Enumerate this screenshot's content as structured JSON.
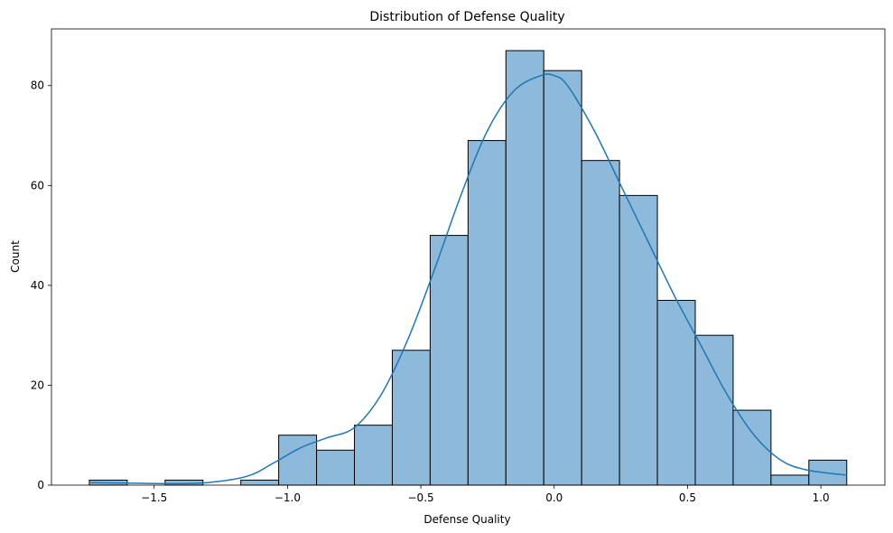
{
  "chart_data": {
    "type": "bar",
    "title": "Distribution of Defense Quality",
    "xlabel": "Defense Quality",
    "ylabel": "Count",
    "xlim": [
      -1.885,
      1.24
    ],
    "ylim": [
      0,
      91.35
    ],
    "x_ticks": [
      -1.5,
      -1.0,
      -0.5,
      0.0,
      0.5,
      1.0
    ],
    "x_tick_labels": [
      "−1.5",
      "−1.0",
      "−0.5",
      "0.0",
      "0.5",
      "1.0"
    ],
    "y_ticks": [
      0,
      20,
      40,
      60,
      80
    ],
    "y_tick_labels": [
      "0",
      "20",
      "40",
      "60",
      "80"
    ],
    "bin_edges": [
      -1.743,
      -1.601,
      -1.459,
      -1.317,
      -1.175,
      -1.033,
      -0.891,
      -0.749,
      -0.607,
      -0.465,
      -0.323,
      -0.181,
      -0.039,
      0.103,
      0.245,
      0.387,
      0.529,
      0.671,
      0.813,
      0.955,
      1.097
    ],
    "values": [
      1,
      0,
      1,
      0,
      1,
      10,
      7,
      12,
      27,
      50,
      69,
      87,
      83,
      65,
      58,
      37,
      30,
      15,
      2,
      5
    ],
    "kde": {
      "x": [
        -1.743,
        -1.6,
        -1.45,
        -1.3,
        -1.15,
        -1.05,
        -0.95,
        -0.85,
        -0.75,
        -0.65,
        -0.55,
        -0.45,
        -0.35,
        -0.25,
        -0.15,
        -0.05,
        0.0,
        0.05,
        0.15,
        0.25,
        0.35,
        0.45,
        0.55,
        0.65,
        0.75,
        0.85,
        0.95,
        1.097
      ],
      "y": [
        0.5,
        0.4,
        0.3,
        0.5,
        1.8,
        4.5,
        7.5,
        9.5,
        11.5,
        18,
        29,
        43,
        58,
        71,
        79,
        82,
        82,
        80,
        71,
        60,
        49,
        38,
        28,
        18,
        10,
        5,
        3,
        2
      ]
    },
    "bar_fill": "#8db9da",
    "bar_edge": "#000000",
    "kde_color": "#1f77b4",
    "grid": false,
    "legend": "none"
  }
}
